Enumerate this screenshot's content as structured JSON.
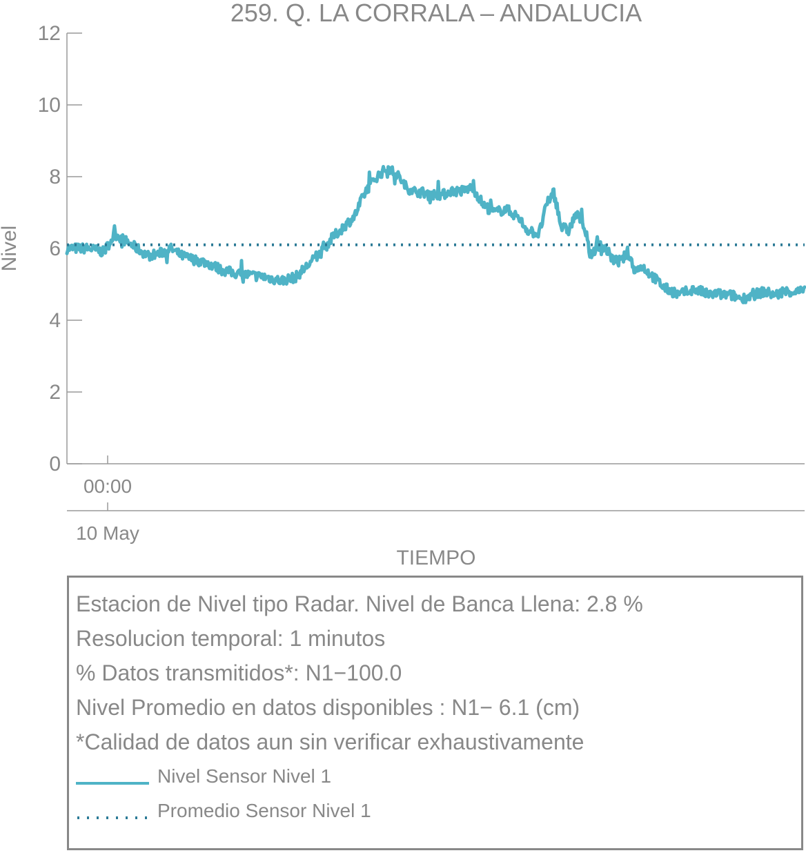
{
  "chart_data": {
    "type": "line",
    "title": "259. Q. LA CORRALA – ANDALUCIA",
    "xlabel": "TIEMPO",
    "ylabel": "Nivel",
    "ylim": [
      0,
      12
    ],
    "yticks": [
      "0",
      "2",
      "4",
      "6",
      "8",
      "10",
      "12"
    ],
    "x_tick_time": "00:00",
    "x_tick_date": "10 May",
    "grid": false,
    "series": [
      {
        "name": "Nivel Sensor Nivel 1",
        "style": "solid",
        "color": "#4fb3c6",
        "x_frac": [
          0.0,
          0.03,
          0.05,
          0.065,
          0.08,
          0.095,
          0.11,
          0.125,
          0.14,
          0.155,
          0.17,
          0.19,
          0.21,
          0.23,
          0.25,
          0.27,
          0.29,
          0.31,
          0.33,
          0.345,
          0.36,
          0.375,
          0.39,
          0.405,
          0.42,
          0.435,
          0.45,
          0.46,
          0.47,
          0.485,
          0.5,
          0.51,
          0.52,
          0.535,
          0.55,
          0.565,
          0.58,
          0.595,
          0.61,
          0.625,
          0.64,
          0.65,
          0.66,
          0.67,
          0.68,
          0.69,
          0.7,
          0.705,
          0.71,
          0.72,
          0.73,
          0.74,
          0.75,
          0.76,
          0.77,
          0.78,
          0.79,
          0.8,
          0.81,
          0.82,
          0.83,
          0.84,
          0.85,
          0.86,
          0.87,
          0.88,
          0.89,
          0.9,
          0.915,
          0.93,
          0.945,
          0.96,
          0.975,
          0.99,
          1.0
        ],
        "values": [
          6.0,
          6.0,
          5.9,
          6.4,
          6.2,
          6.0,
          5.8,
          5.85,
          6.0,
          5.8,
          5.7,
          5.6,
          5.4,
          5.3,
          5.25,
          5.2,
          5.1,
          5.2,
          5.6,
          5.9,
          6.3,
          6.6,
          6.9,
          7.6,
          8.0,
          8.25,
          8.0,
          7.7,
          7.6,
          7.55,
          7.5,
          7.5,
          7.6,
          7.6,
          7.7,
          7.2,
          7.0,
          7.1,
          6.9,
          6.5,
          6.4,
          7.2,
          7.6,
          6.6,
          6.5,
          6.95,
          6.7,
          6.2,
          5.8,
          6.1,
          6.0,
          5.7,
          5.6,
          5.9,
          5.4,
          5.5,
          5.3,
          5.1,
          4.9,
          4.8,
          4.7,
          4.8,
          4.85,
          4.8,
          4.7,
          4.75,
          4.7,
          4.7,
          4.6,
          4.7,
          4.8,
          4.7,
          4.8,
          4.8,
          4.8
        ]
      },
      {
        "name": "Promedio Sensor Nivel 1",
        "style": "dotted",
        "color": "#2b7a96",
        "values": [
          6.1
        ]
      }
    ]
  },
  "info": {
    "line1": "Estacion de Nivel tipo Radar. Nivel de Banca Llena:  2.8 %",
    "line2": "Resolucion temporal: 1 minutos",
    "line3": "% Datos transmitidos*: N1−100.0",
    "line4": "Nivel Promedio en datos disponibles : N1−  6.1 (cm)",
    "line5": "*Calidad de datos aun sin verificar exhaustivamente"
  }
}
